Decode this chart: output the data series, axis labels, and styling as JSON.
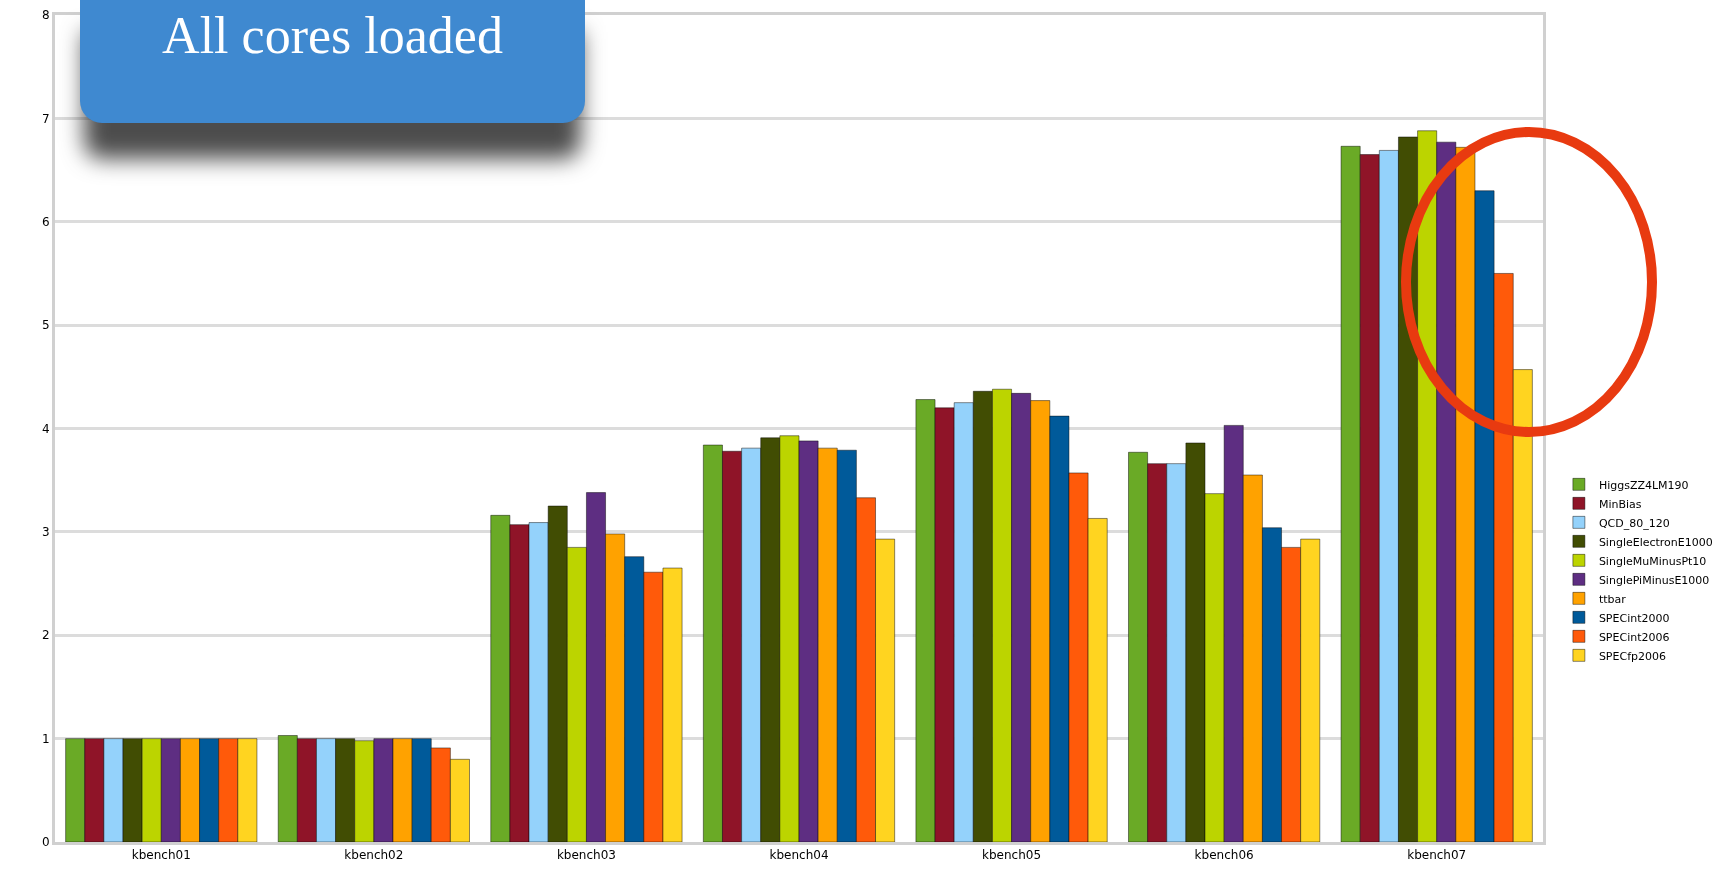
{
  "chart_data": {
    "type": "bar",
    "annotations": [
      "All cores loaded"
    ],
    "categories": [
      "kbench01",
      "kbench02",
      "kbench03",
      "kbench04",
      "kbench05",
      "kbench06",
      "kbench07"
    ],
    "series": [
      {
        "name": "HiggsZZ4LM190",
        "color": "#6aaa26",
        "values": [
          1,
          1.03,
          3.16,
          3.84,
          4.28,
          3.77,
          6.73
        ]
      },
      {
        "name": "MinBias",
        "color": "#8f1428",
        "values": [
          1,
          1,
          3.07,
          3.78,
          4.2,
          3.66,
          6.65
        ]
      },
      {
        "name": "QCD_80_120",
        "color": "#94d2fb",
        "values": [
          1,
          1,
          3.09,
          3.81,
          4.25,
          3.66,
          6.69
        ]
      },
      {
        "name": "SingleElectronE1000",
        "color": "#414d03",
        "values": [
          1,
          1,
          3.25,
          3.91,
          4.36,
          3.86,
          6.82
        ]
      },
      {
        "name": "SingleMuMinusPt10",
        "color": "#bcd400",
        "values": [
          1,
          0.98,
          2.85,
          3.93,
          4.38,
          3.37,
          6.88
        ]
      },
      {
        "name": "SinglePiMinusE1000",
        "color": "#5e2e82",
        "values": [
          1,
          1,
          3.38,
          3.88,
          4.34,
          4.03,
          6.77
        ]
      },
      {
        "name": "ttbar",
        "color": "#ffa200",
        "values": [
          1,
          1,
          2.98,
          3.81,
          4.27,
          3.55,
          6.72
        ]
      },
      {
        "name": "SPECint2000",
        "color": "#005a9a",
        "values": [
          1,
          1,
          2.76,
          3.79,
          4.12,
          3.04,
          6.3
        ]
      },
      {
        "name": "SPECint2006",
        "color": "#ff5a0a",
        "values": [
          1,
          0.91,
          2.61,
          3.33,
          3.57,
          2.85,
          5.5
        ]
      },
      {
        "name": "SPECfp2006",
        "color": "#ffd420",
        "values": [
          1,
          0.8,
          2.65,
          2.93,
          3.13,
          2.93,
          4.57
        ]
      }
    ],
    "ylim": [
      0,
      8
    ],
    "yticks": [
      0,
      1,
      2,
      3,
      4,
      5,
      6,
      7,
      8
    ],
    "grid": "y",
    "legend": "right"
  }
}
